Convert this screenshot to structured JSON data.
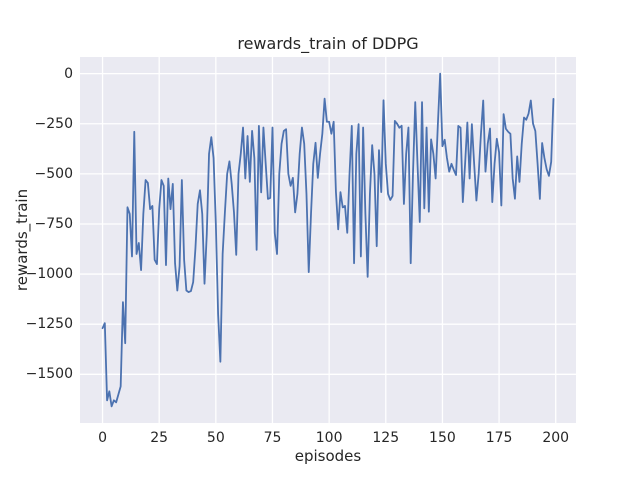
{
  "figure": {
    "title": "rewards_train of DDPG",
    "xlabel": "episodes",
    "ylabel": "rewards_train"
  },
  "colors": {
    "plot_background": "#EAEAF2",
    "grid": "#FFFFFF",
    "line": "#4C72B0",
    "text": "#262626",
    "figure_background": "#FFFFFF"
  },
  "chart_data": {
    "type": "line",
    "title": "rewards_train of DDPG",
    "xlabel": "episodes",
    "ylabel": "rewards_train",
    "grid": true,
    "legend": false,
    "x_ticks": [
      0,
      25,
      50,
      75,
      100,
      125,
      150,
      175,
      200
    ],
    "y_ticks": [
      0,
      -250,
      -500,
      -750,
      -1000,
      -1250,
      -1500
    ],
    "xlim": [
      -9.95,
      208.95
    ],
    "ylim": [
      -1743,
      83
    ],
    "line_color": "#4C72B0",
    "series": [
      {
        "name": "rewards_train",
        "x_start": 0,
        "x_step": 1,
        "values": [
          -1270,
          -1245,
          -1630,
          -1585,
          -1660,
          -1630,
          -1640,
          -1600,
          -1560,
          -1140,
          -1345,
          -667,
          -700,
          -912,
          -290,
          -900,
          -845,
          -980,
          -700,
          -531,
          -545,
          -676,
          -660,
          -929,
          -950,
          -676,
          -531,
          -560,
          -955,
          -523,
          -676,
          -550,
          -946,
          -1082,
          -960,
          -531,
          -929,
          -1082,
          -1090,
          -1085,
          -1040,
          -870,
          -650,
          -582,
          -700,
          -1048,
          -800,
          -400,
          -317,
          -421,
          -750,
          -1200,
          -1437,
          -900,
          -692,
          -500,
          -438,
          -550,
          -692,
          -904,
          -500,
          -400,
          -269,
          -523,
          -311,
          -540,
          -286,
          -421,
          -879,
          -261,
          -592,
          -269,
          -450,
          -625,
          -620,
          -269,
          -795,
          -900,
          -500,
          -350,
          -286,
          -277,
          -500,
          -560,
          -520,
          -692,
          -600,
          -400,
          -269,
          -350,
          -600,
          -990,
          -700,
          -450,
          -345,
          -520,
          -400,
          -300,
          -125,
          -240,
          -240,
          -300,
          -240,
          -590,
          -777,
          -591,
          -667,
          -660,
          -794,
          -500,
          -261,
          -946,
          -400,
          -252,
          -912,
          -269,
          -700,
          -1014,
          -600,
          -357,
          -500,
          -861,
          -382,
          -591,
          -133,
          -450,
          -600,
          -630,
          -610,
          -236,
          -250,
          -270,
          -260,
          -650,
          -400,
          -269,
          -946,
          -500,
          -142,
          -450,
          -740,
          -142,
          -672,
          -269,
          -689,
          -328,
          -400,
          -523,
          -250,
          0,
          -362,
          -330,
          -421,
          -489,
          -450,
          -480,
          -506,
          -261,
          -270,
          -641,
          -450,
          -244,
          -523,
          -252,
          -450,
          -633,
          -500,
          -300,
          -134,
          -489,
          -350,
          -274,
          -641,
          -450,
          -325,
          -392,
          -658,
          -202,
          -275,
          -290,
          -300,
          -523,
          -624,
          -413,
          -540,
          -350,
          -219,
          -230,
          -200,
          -134,
          -250,
          -286,
          -450,
          -625,
          -346,
          -420,
          -477,
          -510,
          -440,
          -126
        ]
      }
    ]
  }
}
